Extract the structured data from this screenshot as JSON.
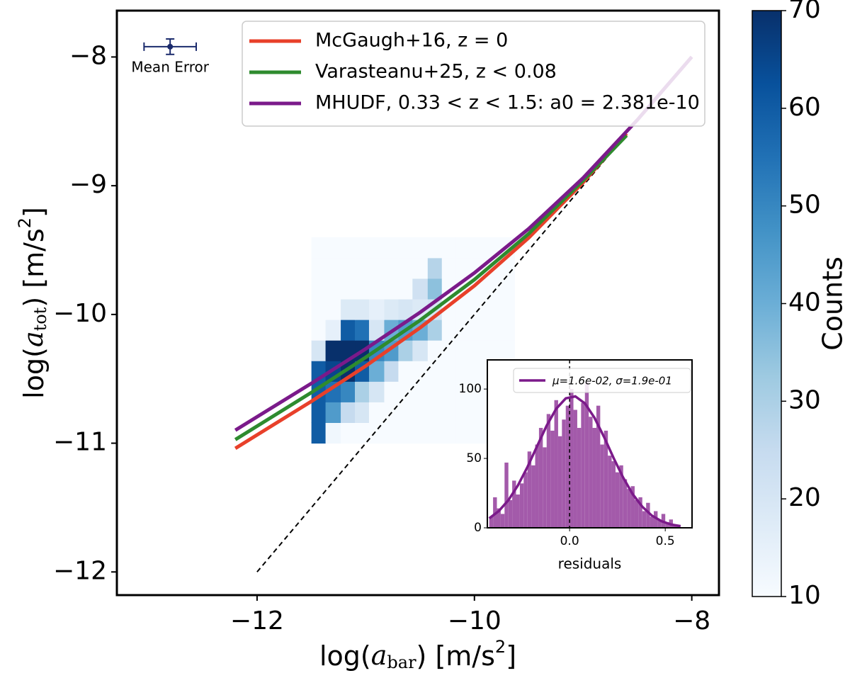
{
  "chart_data": [
    {
      "type": "line",
      "xlim": [
        -13.29,
        -7.75
      ],
      "ylim": [
        -12.18,
        -7.64
      ],
      "xticks": [
        {
          "value": -12,
          "label": "−12"
        },
        {
          "value": -10,
          "label": "−10"
        },
        {
          "value": -8,
          "label": "−8"
        }
      ],
      "yticks": [
        {
          "value": -12,
          "label": "−12"
        },
        {
          "value": -11,
          "label": "−11"
        },
        {
          "value": -10,
          "label": "−10"
        },
        {
          "value": -9,
          "label": "−9"
        },
        {
          "value": -8,
          "label": "−8"
        }
      ],
      "x_label": [
        "log(",
        "a",
        "bar",
        ") [m/s",
        "2",
        "]"
      ],
      "y_label": [
        "log(",
        "a",
        "tot",
        ") [m/s",
        "2",
        "]"
      ],
      "legend": "upper right",
      "series": [
        {
          "name": "McGaugh+16, z = 0",
          "color": "#e8402a",
          "x": [
            -12.2,
            -11.5,
            -11,
            -10.5,
            -10,
            -9.5,
            -9,
            -8.6
          ],
          "values": [
            -11.04,
            -10.675,
            -10.4,
            -10.103,
            -9.777,
            -9.404,
            -8.975,
            -8.595
          ]
        },
        {
          "name": "Varasteanu+25, z < 0.08",
          "color": "#2e8b2e",
          "x": [
            -12.2,
            -11.5,
            -11,
            -10.5,
            -10,
            -9.5,
            -9,
            -8.6
          ],
          "values": [
            -10.972,
            -10.606,
            -10.333,
            -10.045,
            -9.729,
            -9.372,
            -8.96,
            -8.609
          ]
        },
        {
          "name": "MHUDF, 0.33 < z < 1.5: a0 = 2.381e-10",
          "color": "#7b1a8a",
          "x": [
            -12.2,
            -11.5,
            -11,
            -10.5,
            -10,
            -9.5,
            -9,
            -8.5,
            -8
          ],
          "values": [
            -10.899,
            -10.535,
            -10.267,
            -9.984,
            -9.677,
            -9.334,
            -8.94,
            -8.488,
            -7.999
          ]
        }
      ],
      "reference_line": {
        "x": [
          -12,
          -8.6
        ],
        "values": [
          -12,
          -8.6
        ],
        "color": "#000000"
      },
      "heatmap": {
        "xbins": [
          -11.5,
          -11.37,
          -11.23,
          -11.1,
          -10.97,
          -10.83,
          -10.7,
          -10.57,
          -10.43,
          -10.3,
          -10.17,
          -10.03,
          -9.9,
          -9.77,
          -9.63
        ],
        "ybins": [
          -11.0,
          -10.84,
          -10.68,
          -10.52,
          -10.36,
          -10.2,
          -10.04,
          -9.88,
          -9.72,
          -9.56,
          -9.4
        ],
        "values": [
          [
            60,
            12,
            10,
            10,
            10,
            10,
            10,
            10,
            10,
            10,
            10,
            10,
            10,
            10
          ],
          [
            60,
            45,
            25,
            20,
            10,
            10,
            10,
            10,
            10,
            10,
            10,
            10,
            10,
            10
          ],
          [
            60,
            55,
            50,
            30,
            20,
            10,
            10,
            10,
            10,
            10,
            10,
            10,
            10,
            10
          ],
          [
            60,
            65,
            70,
            60,
            40,
            25,
            10,
            10,
            10,
            10,
            10,
            10,
            10,
            10
          ],
          [
            20,
            70,
            70,
            70,
            50,
            45,
            30,
            20,
            10,
            10,
            10,
            10,
            10,
            10
          ],
          [
            10,
            15,
            60,
            55,
            20,
            40,
            45,
            40,
            30,
            10,
            10,
            10,
            10,
            10
          ],
          [
            10,
            10,
            18,
            18,
            15,
            18,
            20,
            18,
            20,
            10,
            10,
            10,
            10,
            10
          ],
          [
            10,
            10,
            10,
            10,
            10,
            10,
            10,
            22,
            35,
            10,
            10,
            10,
            10,
            10
          ],
          [
            10,
            10,
            10,
            10,
            10,
            10,
            10,
            10,
            28,
            10,
            10,
            10,
            10,
            10
          ],
          [
            10,
            10,
            10,
            10,
            10,
            10,
            10,
            10,
            10,
            10,
            10,
            10,
            10,
            10
          ]
        ],
        "colormap": "Blues",
        "clim": [
          10,
          70
        ],
        "cticks": [
          10,
          20,
          30,
          40,
          50,
          60,
          70
        ],
        "clabel": "Counts"
      },
      "mean_error": {
        "label": "Mean Error",
        "x": -12.8,
        "y": -7.92,
        "xerr": 0.24,
        "yerr": 0.06,
        "color": "#1a2a6c"
      }
    },
    {
      "type": "histogram",
      "bins": [
        -0.42,
        -0.4,
        -0.38,
        -0.36,
        -0.34,
        -0.32,
        -0.3,
        -0.28,
        -0.26,
        -0.24,
        -0.22,
        -0.2,
        -0.18,
        -0.16,
        -0.14,
        -0.12,
        -0.1,
        -0.08,
        -0.06,
        -0.04,
        -0.02,
        0.0,
        0.02,
        0.04,
        0.06,
        0.08,
        0.1,
        0.12,
        0.14,
        0.16,
        0.18,
        0.2,
        0.22,
        0.24,
        0.26,
        0.28,
        0.3,
        0.32,
        0.34,
        0.36,
        0.38,
        0.4,
        0.42,
        0.44,
        0.46,
        0.48,
        0.5,
        0.52,
        0.54,
        0.56,
        0.58
      ],
      "values": [
        8,
        22,
        14,
        10,
        47,
        20,
        34,
        24,
        32,
        40,
        55,
        45,
        60,
        72,
        58,
        82,
        70,
        92,
        66,
        78,
        88,
        100,
        85,
        72,
        90,
        105,
        80,
        72,
        88,
        60,
        70,
        52,
        48,
        40,
        45,
        35,
        28,
        30,
        20,
        22,
        12,
        18,
        8,
        12,
        6,
        10,
        4,
        6,
        2,
        1
      ],
      "color": "#a35aaa",
      "xlim": [
        -0.43,
        0.64
      ],
      "ylim": [
        0,
        121
      ],
      "xticks": [
        {
          "value": 0,
          "label": "0.0"
        },
        {
          "value": 0.5,
          "label": "0.5"
        }
      ],
      "yticks": [
        0,
        50,
        100
      ],
      "x_label": "residuals",
      "vline_x": 0,
      "fit": {
        "name": "μ=1.6e-02, σ=1.9e-01",
        "color": "#7b1a8a",
        "x": [
          -0.42,
          -0.37,
          -0.32,
          -0.27,
          -0.22,
          -0.17,
          -0.12,
          -0.07,
          -0.02,
          0.03,
          0.08,
          0.13,
          0.18,
          0.23,
          0.28,
          0.33,
          0.38,
          0.43,
          0.48,
          0.53,
          0.58
        ],
        "values": [
          6.8,
          12.1,
          19.9,
          30.6,
          43.9,
          58.8,
          73.6,
          85.8,
          93.3,
          94.7,
          89.7,
          79.3,
          65.5,
          50.3,
          36.2,
          24.2,
          15.2,
          8.8,
          4.8,
          2.4,
          1.2
        ]
      }
    }
  ]
}
